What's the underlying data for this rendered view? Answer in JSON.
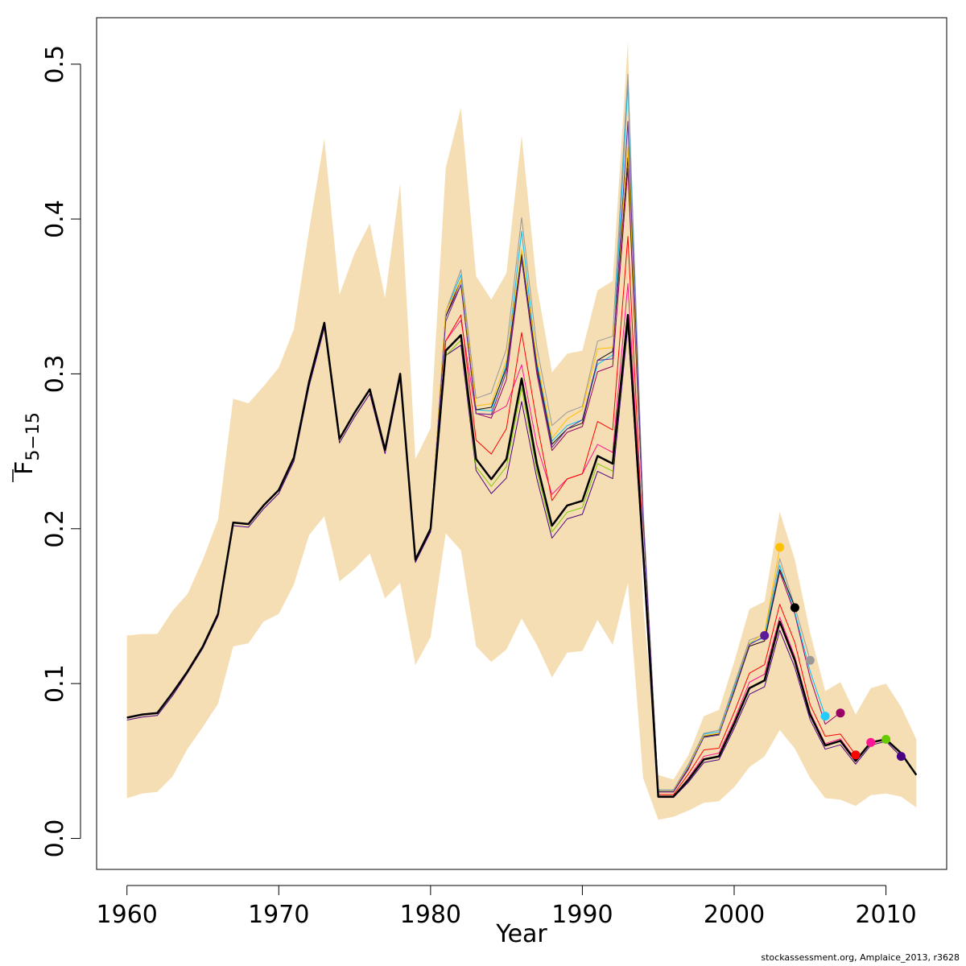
{
  "chart_data": {
    "type": "line",
    "xlabel": "Year",
    "ylabel_main": "F",
    "ylabel_sub": "5−15",
    "xlim": [
      1958,
      2014
    ],
    "ylim": [
      -0.02,
      0.53
    ],
    "x_ticks": [
      1960,
      1970,
      1980,
      1990,
      2000,
      2010
    ],
    "x_tick_labels": [
      "1960",
      "1970",
      "1980",
      "1990",
      "2000",
      "2010"
    ],
    "y_ticks": [
      0.0,
      0.1,
      0.2,
      0.3,
      0.4,
      0.5
    ],
    "y_tick_labels": [
      "0.0",
      "0.1",
      "0.2",
      "0.3",
      "0.4",
      "0.5"
    ],
    "grid": false,
    "band_color": "#f5deb3",
    "years": [
      1960,
      1961,
      1962,
      1963,
      1964,
      1965,
      1966,
      1967,
      1968,
      1969,
      1970,
      1971,
      1972,
      1973,
      1974,
      1975,
      1976,
      1977,
      1978,
      1979,
      1980,
      1981,
      1982,
      1983,
      1984,
      1985,
      1986,
      1987,
      1988,
      1989,
      1990,
      1991,
      1992,
      1993,
      1994,
      1995,
      1996,
      1997,
      1998,
      1999,
      2000,
      2001,
      2002,
      2003,
      2004,
      2005,
      2006,
      2007,
      2008,
      2009,
      2010,
      2011,
      2012
    ],
    "band_upper": [
      0.131,
      0.132,
      0.132,
      0.147,
      0.158,
      0.18,
      0.206,
      0.284,
      0.281,
      0.292,
      0.304,
      0.329,
      0.393,
      0.452,
      0.351,
      0.378,
      0.397,
      0.349,
      0.423,
      0.245,
      0.265,
      0.433,
      0.472,
      0.363,
      0.348,
      0.365,
      0.454,
      0.357,
      0.301,
      0.313,
      0.315,
      0.354,
      0.36,
      0.515,
      0.151,
      0.041,
      0.038,
      0.054,
      0.079,
      0.083,
      0.114,
      0.148,
      0.153,
      0.211,
      0.18,
      0.133,
      0.095,
      0.101,
      0.08,
      0.097,
      0.1,
      0.085,
      0.064
    ],
    "band_lower": [
      0.026,
      0.029,
      0.03,
      0.04,
      0.058,
      0.072,
      0.087,
      0.124,
      0.126,
      0.14,
      0.145,
      0.164,
      0.196,
      0.208,
      0.166,
      0.174,
      0.184,
      0.155,
      0.165,
      0.112,
      0.13,
      0.197,
      0.186,
      0.124,
      0.114,
      0.122,
      0.142,
      0.125,
      0.104,
      0.12,
      0.121,
      0.141,
      0.125,
      0.165,
      0.039,
      0.012,
      0.014,
      0.018,
      0.023,
      0.024,
      0.033,
      0.046,
      0.053,
      0.07,
      0.058,
      0.039,
      0.026,
      0.025,
      0.021,
      0.028,
      0.029,
      0.027,
      0.02
    ],
    "base_curve": [
      0.078,
      0.08,
      0.081,
      0.094,
      0.108,
      0.124,
      0.145,
      0.204,
      0.203,
      0.215,
      0.225,
      0.246,
      0.295,
      0.333,
      0.258,
      0.275,
      0.29,
      0.251,
      0.3,
      0.18,
      0.2,
      0.315,
      0.325,
      0.245,
      0.232,
      0.245,
      0.297,
      0.242,
      0.202,
      0.215,
      0.218,
      0.247,
      0.242,
      0.338,
      0.185,
      0.027,
      0.027,
      0.038,
      0.051,
      0.053,
      0.074,
      0.097,
      0.102,
      0.14,
      0.115,
      0.08,
      0.06,
      0.063,
      0.05,
      0.062,
      0.064,
      0.055,
      0.041
    ],
    "peels": [
      {
        "color": "#000000",
        "end_year": 2012,
        "width": 2.5,
        "multipliers": [
          1,
          1,
          1,
          1,
          1,
          1,
          1,
          1,
          1,
          1,
          1,
          1,
          1,
          1,
          1,
          1,
          1,
          1,
          1,
          1,
          1,
          1.0,
          1.0,
          1.0,
          1.0,
          1.0,
          1.0,
          1.0,
          1.0,
          1.0,
          1.0,
          1.0,
          1.0,
          1.0,
          1.0,
          1.0,
          1.0,
          1.0,
          1.0,
          1.0,
          1.0,
          1.0,
          1.0,
          1.0,
          1.0,
          1.0,
          1.0,
          1.0,
          1.0,
          1.0,
          1.0,
          1.0,
          1.0
        ]
      },
      {
        "color": "#4b0082",
        "end_year": 2011,
        "width": 1,
        "multipliers": [
          0.98,
          0.98,
          0.98,
          0.98,
          0.99,
          0.99,
          0.99,
          0.99,
          0.99,
          0.99,
          0.99,
          0.99,
          0.99,
          0.99,
          0.99,
          0.99,
          0.99,
          0.99,
          0.99,
          0.99,
          0.99,
          0.99,
          0.98,
          0.97,
          0.96,
          0.95,
          0.95,
          0.96,
          0.96,
          0.96,
          0.96,
          0.96,
          0.96,
          0.98,
          0.98,
          0.98,
          0.98,
          0.96,
          0.96,
          0.96,
          0.96,
          0.96,
          0.96,
          0.96,
          0.96,
          0.96,
          0.96,
          0.96,
          0.96,
          0.97,
          0.98,
          0.96,
          0.96
        ]
      },
      {
        "color": "#7fcc00",
        "end_year": 2010,
        "width": 1,
        "multipliers": [
          1,
          1,
          1,
          1,
          1,
          1,
          1,
          1,
          1,
          1,
          1,
          1,
          1,
          1,
          1,
          1,
          1,
          1,
          1,
          1,
          1,
          0.99,
          0.99,
          0.98,
          0.98,
          0.98,
          0.98,
          0.98,
          0.98,
          0.98,
          0.98,
          0.98,
          0.98,
          0.99,
          1,
          1,
          1,
          1,
          1,
          1,
          1,
          1,
          1,
          1,
          1,
          1,
          1,
          1,
          1,
          1,
          1,
          1,
          1
        ]
      },
      {
        "color": "#ff1493",
        "end_year": 2009,
        "width": 1,
        "multipliers": [
          1,
          1,
          1,
          1,
          1,
          1,
          1,
          1,
          1,
          1,
          1,
          1,
          1,
          1,
          1,
          1,
          1,
          1,
          1,
          1,
          1,
          1.02,
          1.03,
          1.12,
          1.18,
          1.14,
          1.03,
          1.05,
          1.1,
          1.08,
          1.08,
          1.03,
          1.03,
          1.06,
          1.01,
          1.0,
          1.0,
          1.03,
          1.04,
          1.04,
          1.03,
          1.04,
          1.04,
          1.02,
          1.02,
          1.02,
          1.02,
          1.02,
          1.02,
          1.0,
          1.0,
          1.0,
          1.0
        ]
      },
      {
        "color": "#ff0000",
        "end_year": 2008,
        "width": 1,
        "multipliers": [
          1,
          1,
          1,
          1,
          1,
          1,
          1,
          1,
          1,
          1,
          1,
          1,
          1,
          1,
          1,
          1,
          1,
          1,
          1,
          1,
          1,
          1.02,
          1.04,
          1.05,
          1.07,
          1.08,
          1.1,
          1.11,
          1.08,
          1.08,
          1.08,
          1.09,
          1.09,
          1.15,
          1.03,
          1.05,
          1.05,
          1.1,
          1.12,
          1.1,
          1.1,
          1.1,
          1.1,
          1.08,
          1.1,
          1.08,
          1.1,
          1.07,
          1.08,
          1.0,
          1.0,
          1.0,
          1.0
        ]
      },
      {
        "color": "#990066",
        "end_year": 2007,
        "width": 1,
        "multipliers": [
          1,
          1,
          1,
          1,
          1,
          1,
          1,
          1,
          1,
          1,
          1,
          1,
          1,
          1,
          1,
          1,
          1,
          1,
          1,
          1,
          1,
          1.07,
          1.1,
          1.12,
          1.17,
          1.21,
          1.26,
          1.24,
          1.24,
          1.22,
          1.22,
          1.22,
          1.26,
          1.28,
          1.12,
          1.11,
          1.11,
          1.18,
          1.3,
          1.28,
          1.3,
          1.28,
          1.25,
          1.23,
          1.26,
          1.3,
          1.23,
          1.29,
          1.0,
          1.0,
          1.0,
          1.0,
          1.0
        ]
      },
      {
        "color": "#00bfff",
        "end_year": 2006,
        "width": 1,
        "multipliers": [
          1,
          1,
          1,
          1,
          1,
          1,
          1,
          1,
          1,
          1,
          1,
          1,
          1,
          1,
          1,
          1,
          1,
          1,
          1,
          1,
          1,
          1.08,
          1.12,
          1.13,
          1.19,
          1.25,
          1.32,
          1.27,
          1.27,
          1.24,
          1.24,
          1.24,
          1.29,
          1.44,
          1.14,
          1.15,
          1.15,
          1.24,
          1.32,
          1.3,
          1.32,
          1.3,
          1.27,
          1.26,
          1.27,
          1.35,
          1.32,
          1.0,
          1.0,
          1.0,
          1.0,
          1.0,
          1.0
        ]
      },
      {
        "color": "#999999",
        "end_year": 2005,
        "width": 1,
        "multipliers": [
          1,
          1,
          1,
          1,
          1,
          1,
          1,
          1,
          1,
          1,
          1,
          1,
          1,
          1,
          1,
          1,
          1,
          1,
          1,
          1,
          1,
          1.08,
          1.13,
          1.16,
          1.24,
          1.29,
          1.35,
          1.31,
          1.32,
          1.28,
          1.28,
          1.3,
          1.34,
          1.46,
          1.15,
          1.16,
          1.16,
          1.26,
          1.33,
          1.32,
          1.34,
          1.32,
          1.29,
          1.29,
          1.3,
          1.44,
          1.0,
          1.0,
          1.0,
          1.0,
          1.0,
          1.0,
          1.0
        ]
      },
      {
        "color": "#111111",
        "end_year": 2004,
        "width": 1,
        "multipliers": [
          1,
          1,
          1,
          1,
          1,
          1,
          1,
          1,
          1,
          1,
          1,
          1,
          1,
          1,
          1,
          1,
          1,
          1,
          1,
          1,
          1,
          1.07,
          1.11,
          1.13,
          1.2,
          1.24,
          1.27,
          1.26,
          1.26,
          1.23,
          1.23,
          1.25,
          1.3,
          1.3,
          1.13,
          1.12,
          1.12,
          1.2,
          1.29,
          1.27,
          1.28,
          1.28,
          1.25,
          1.24,
          1.3,
          1.0,
          1.0,
          1.0,
          1.0,
          1.0,
          1.0,
          1.0,
          1.0
        ]
      },
      {
        "color": "#ffc000",
        "end_year": 2003,
        "width": 1,
        "multipliers": [
          1,
          1,
          1,
          1,
          1,
          1,
          1,
          1,
          1,
          1,
          1,
          1,
          1,
          1,
          1,
          1,
          1,
          1,
          1,
          1,
          1,
          1.08,
          1.11,
          1.14,
          1.21,
          1.26,
          1.28,
          1.28,
          1.28,
          1.26,
          1.27,
          1.28,
          1.31,
          1.32,
          1.13,
          1.13,
          1.13,
          1.22,
          1.3,
          1.28,
          1.3,
          1.3,
          1.3,
          1.34,
          1.0,
          1.0,
          1.0,
          1.0,
          1.0,
          1.0,
          1.0,
          1.0,
          1.0
        ]
      },
      {
        "color": "#5a2d9c",
        "end_year": 2002,
        "width": 1,
        "multipliers": [
          1,
          1,
          1,
          1,
          1,
          1,
          1,
          1,
          1,
          1,
          1,
          1,
          1,
          1,
          1,
          1,
          1,
          1,
          1,
          1,
          1,
          1.06,
          1.1,
          1.12,
          1.18,
          1.23,
          1.26,
          1.25,
          1.25,
          1.23,
          1.24,
          1.25,
          1.28,
          1.37,
          1.12,
          1.12,
          1.12,
          1.2,
          1.28,
          1.26,
          1.29,
          1.29,
          1.28,
          1.0,
          1.0,
          1.0,
          1.0,
          1.0,
          1.0,
          1.0,
          1.0,
          1.0,
          1.0
        ]
      }
    ],
    "terminal_points": [
      {
        "year": 2002,
        "value": 0.131,
        "color": "#5a1a9a"
      },
      {
        "year": 2003,
        "value": 0.188,
        "color": "#ffc000"
      },
      {
        "year": 2004,
        "value": 0.149,
        "color": "#000000"
      },
      {
        "year": 2005,
        "value": 0.115,
        "color": "#999999"
      },
      {
        "year": 2006,
        "value": 0.079,
        "color": "#22ccff"
      },
      {
        "year": 2007,
        "value": 0.081,
        "color": "#990066"
      },
      {
        "year": 2008,
        "value": 0.054,
        "color": "#ff0000"
      },
      {
        "year": 2009,
        "value": 0.062,
        "color": "#ff1493"
      },
      {
        "year": 2010,
        "value": 0.064,
        "color": "#66cc00"
      },
      {
        "year": 2011,
        "value": 0.053,
        "color": "#4b0082"
      }
    ]
  },
  "credit_text": "stockassessment.org, Amplaice_2013, r3628"
}
